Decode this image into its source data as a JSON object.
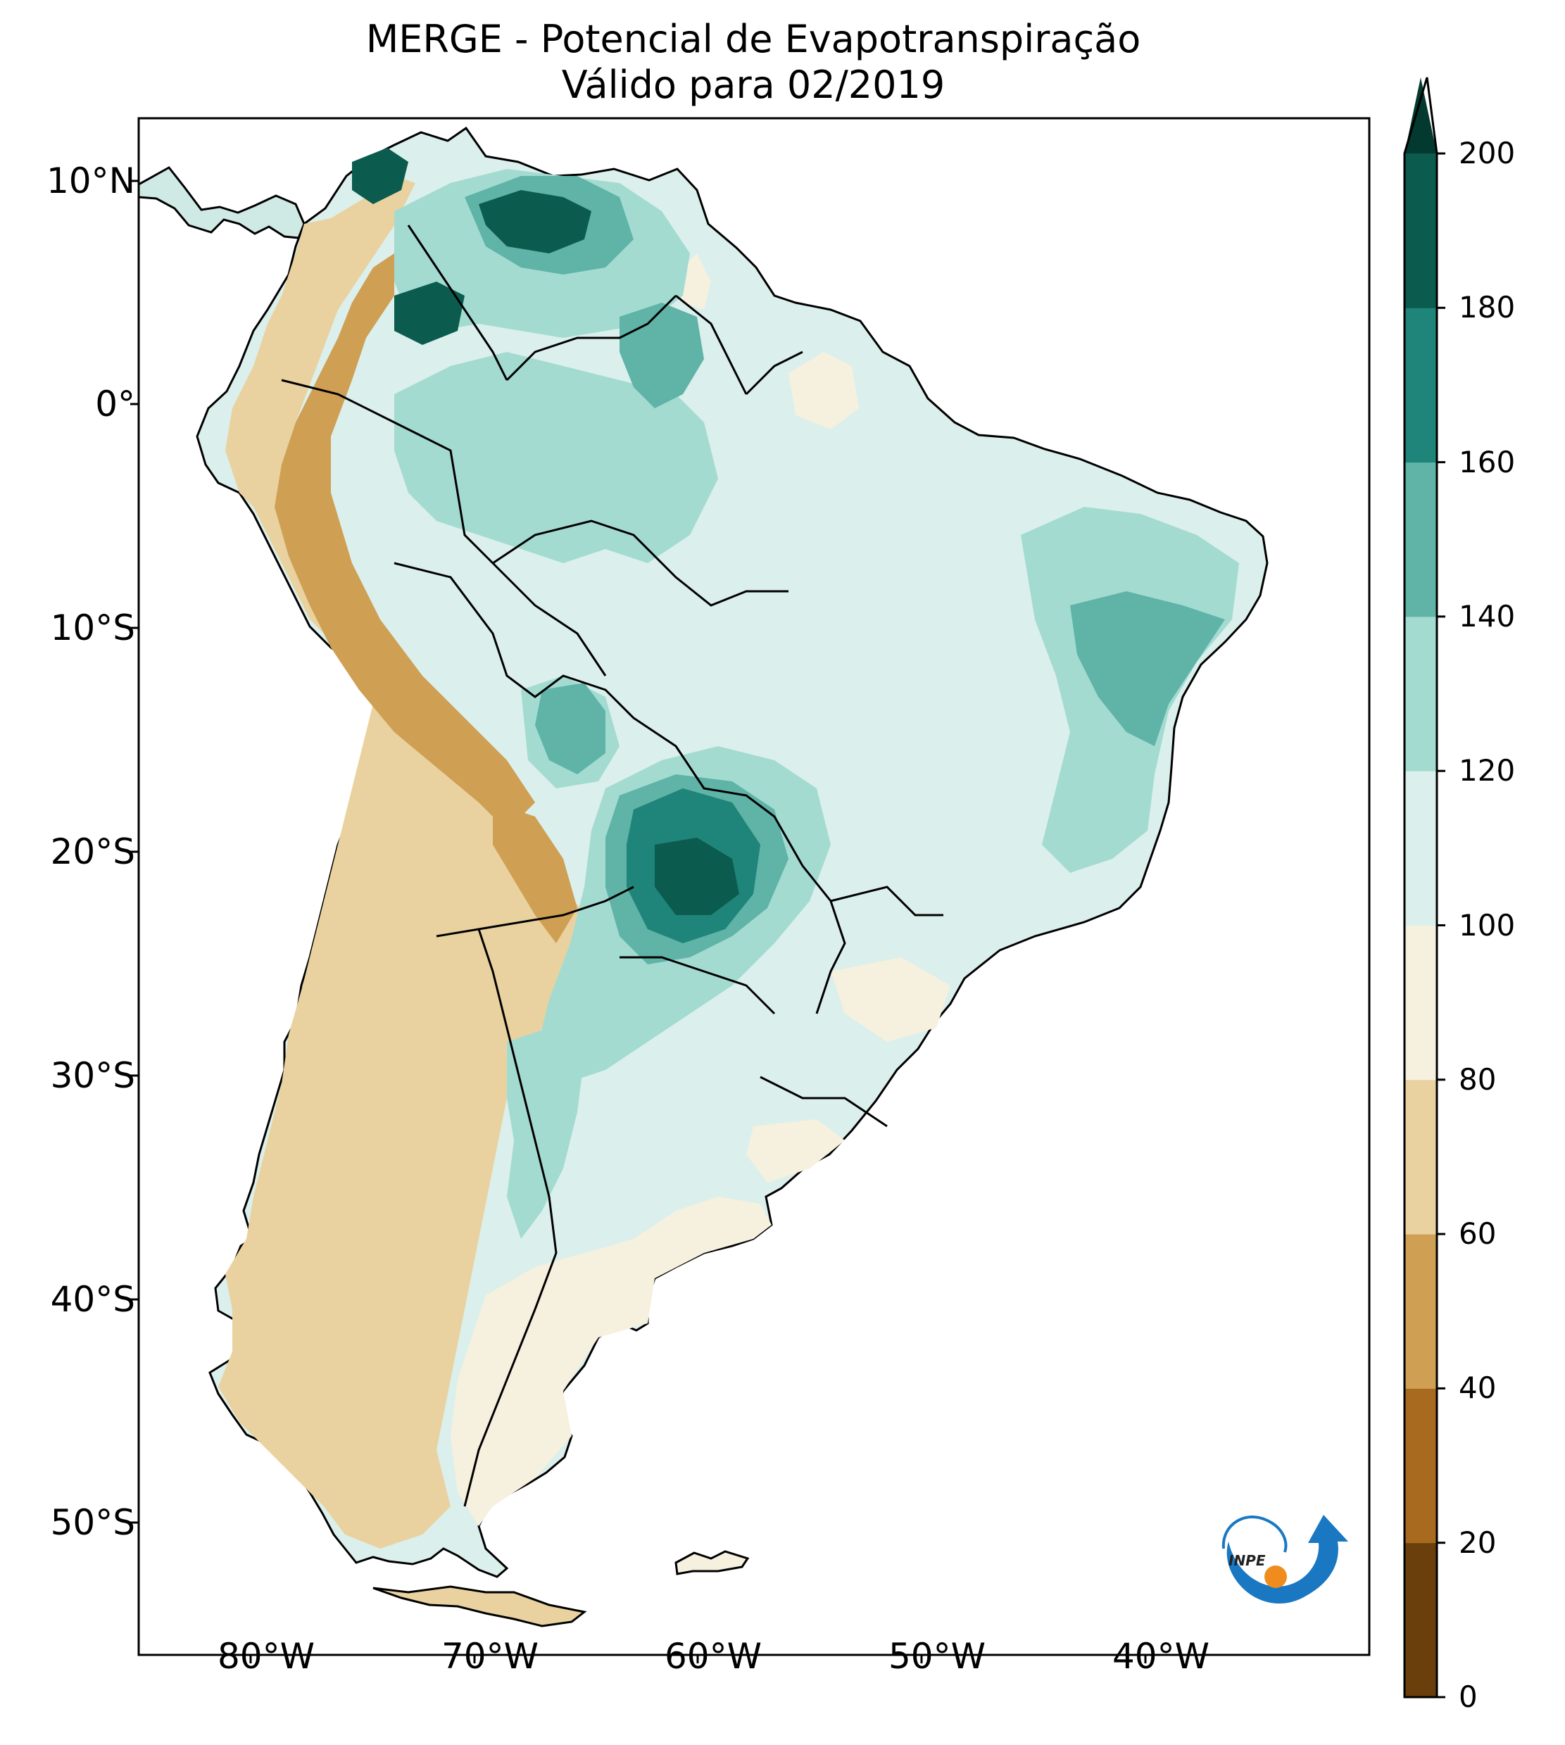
{
  "title": {
    "line1": "MERGE - Potencial de Evapotranspiração",
    "line2": "Válido para 02/2019"
  },
  "map": {
    "lon_range": [
      -85,
      -30
    ],
    "lat_range": [
      -56,
      12.5
    ],
    "lat_ticks": [
      {
        "value": 10,
        "label": "10°N"
      },
      {
        "value": 0,
        "label": "0°"
      },
      {
        "value": -10,
        "label": "10°S"
      },
      {
        "value": -20,
        "label": "20°S"
      },
      {
        "value": -30,
        "label": "30°S"
      },
      {
        "value": -40,
        "label": "40°S"
      },
      {
        "value": -50,
        "label": "50°S"
      }
    ],
    "lon_ticks": [
      {
        "value": -80,
        "label": "80°W"
      },
      {
        "value": -70,
        "label": "70°W"
      },
      {
        "value": -60,
        "label": "60°W"
      },
      {
        "value": -50,
        "label": "50°W"
      },
      {
        "value": -40,
        "label": "40°W"
      }
    ]
  },
  "colorbar": {
    "levels": [
      0,
      20,
      40,
      60,
      80,
      100,
      120,
      140,
      160,
      180,
      200
    ],
    "colors": [
      "#6b3f0c",
      "#a86a1f",
      "#cf9f54",
      "#e9d29f",
      "#f6f0df",
      "#dbefec",
      "#a3dbd1",
      "#5fb3a7",
      "#1f8479",
      "#0b5c4e"
    ],
    "extend_color": "#04392f",
    "tick_labels": [
      "0",
      "20",
      "40",
      "60",
      "80",
      "100",
      "120",
      "140",
      "160",
      "180",
      "200"
    ]
  },
  "logo": {
    "text": "INPE",
    "colors": {
      "blue": "#1a78c2",
      "orange": "#f08c1e"
    }
  }
}
